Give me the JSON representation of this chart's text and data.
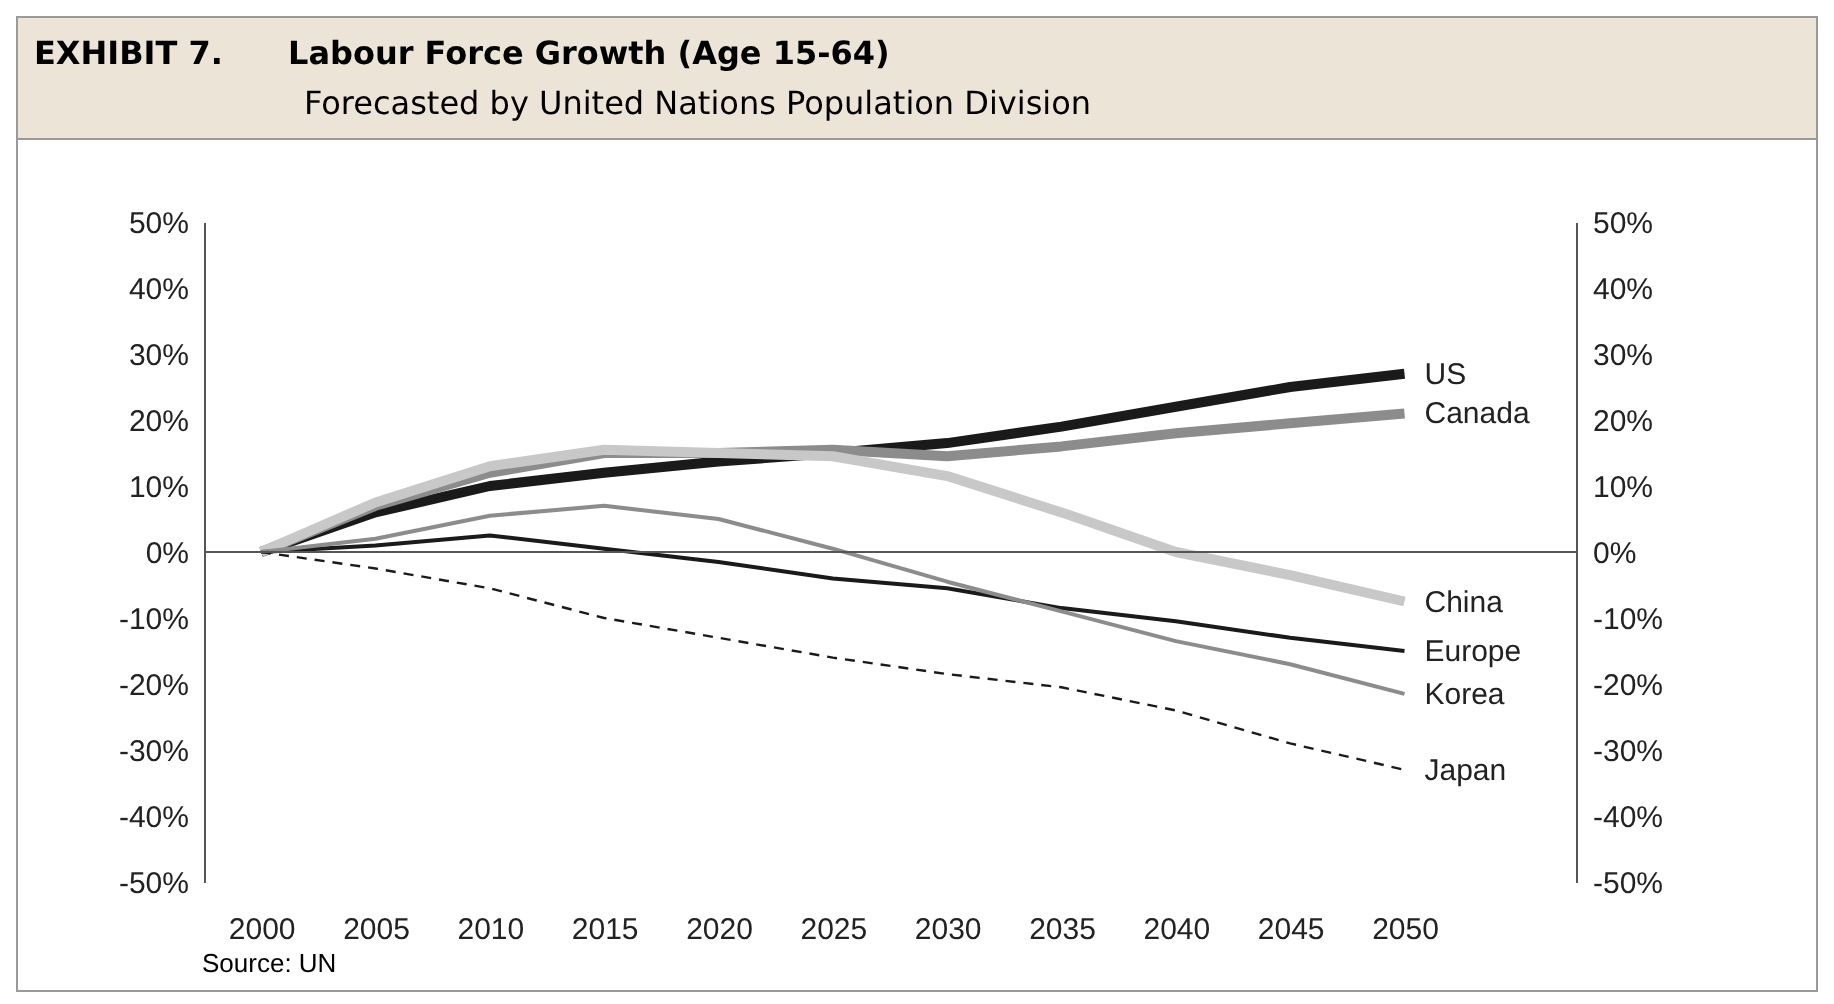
{
  "chart_data": {
    "type": "line",
    "title": "Labour Force Growth (Age 15-64)",
    "subtitle": "Forecasted by United Nations Population Division",
    "annotations": [
      "EXHIBIT 7.",
      "Source: UN"
    ],
    "x": [
      2000,
      2005,
      2010,
      2015,
      2020,
      2025,
      2030,
      2035,
      2040,
      2045,
      2050
    ],
    "series": [
      {
        "name": "US",
        "color": "#1a1a1a",
        "line_style": "solid",
        "values": [
          0,
          6,
          10,
          12,
          13.7,
          15,
          16.5,
          19,
          22,
          25,
          27
        ]
      },
      {
        "name": "Canada",
        "color": "#8c8c8c",
        "line_style": "solid",
        "values": [
          0,
          7,
          12,
          15,
          15,
          15.5,
          14.5,
          16,
          18,
          19.5,
          21
        ]
      },
      {
        "name": "China",
        "color": "#c8c8c8",
        "line_style": "solid",
        "values": [
          0,
          7.5,
          13,
          15.5,
          15,
          14.5,
          11.5,
          6,
          0,
          -3.5,
          -7.5
        ]
      },
      {
        "name": "Europe",
        "color": "#1a1a1a",
        "line_style": "solid",
        "values": [
          0,
          1,
          2.5,
          0.5,
          -1.5,
          -4,
          -5.5,
          -8.5,
          -10.5,
          -13,
          -15
        ]
      },
      {
        "name": "Korea",
        "color": "#8c8c8c",
        "line_style": "solid",
        "values": [
          0,
          2,
          5.5,
          7,
          5,
          0.5,
          -4.5,
          -9,
          -13.5,
          -17,
          -21.5
        ]
      },
      {
        "name": "Japan",
        "color": "#1a1a1a",
        "line_style": "dashed",
        "values": [
          0,
          -2.5,
          -5.5,
          -10,
          -13,
          -16,
          -18.5,
          -20.5,
          -24,
          -29,
          -33
        ]
      }
    ],
    "xlim": [
      1997.5,
      2057.5
    ],
    "xticks": [
      2000,
      2005,
      2010,
      2015,
      2020,
      2025,
      2030,
      2035,
      2040,
      2045,
      2050
    ],
    "ylim": [
      -50,
      50
    ],
    "yticks": [
      {
        "value": -50,
        "label": "-50%"
      },
      {
        "value": -40,
        "label": "-40%"
      },
      {
        "value": -30,
        "label": "-30%"
      },
      {
        "value": -20,
        "label": "-20%"
      },
      {
        "value": -10,
        "label": "-10%"
      },
      {
        "value": 0,
        "label": "0%"
      },
      {
        "value": 10,
        "label": "10%"
      },
      {
        "value": 20,
        "label": "20%"
      },
      {
        "value": 30,
        "label": "30%"
      },
      {
        "value": 40,
        "label": "40%"
      },
      {
        "value": 50,
        "label": "50%"
      }
    ],
    "y2lim": [
      -50,
      50
    ],
    "y2ticks": [
      {
        "value": -50,
        "label": "-50%"
      },
      {
        "value": -40,
        "label": "-40%"
      },
      {
        "value": -30,
        "label": "-30%"
      },
      {
        "value": -20,
        "label": "-20%"
      },
      {
        "value": -10,
        "label": "-10%"
      },
      {
        "value": 0,
        "label": "0%"
      },
      {
        "value": 10,
        "label": "10%"
      },
      {
        "value": 20,
        "label": "20%"
      },
      {
        "value": 30,
        "label": "30%"
      },
      {
        "value": 40,
        "label": "40%"
      },
      {
        "value": 50,
        "label": "50%"
      }
    ],
    "ref_lines": [
      {
        "axis": "y",
        "value": 0,
        "color": "#555555"
      }
    ],
    "grid": false
  }
}
